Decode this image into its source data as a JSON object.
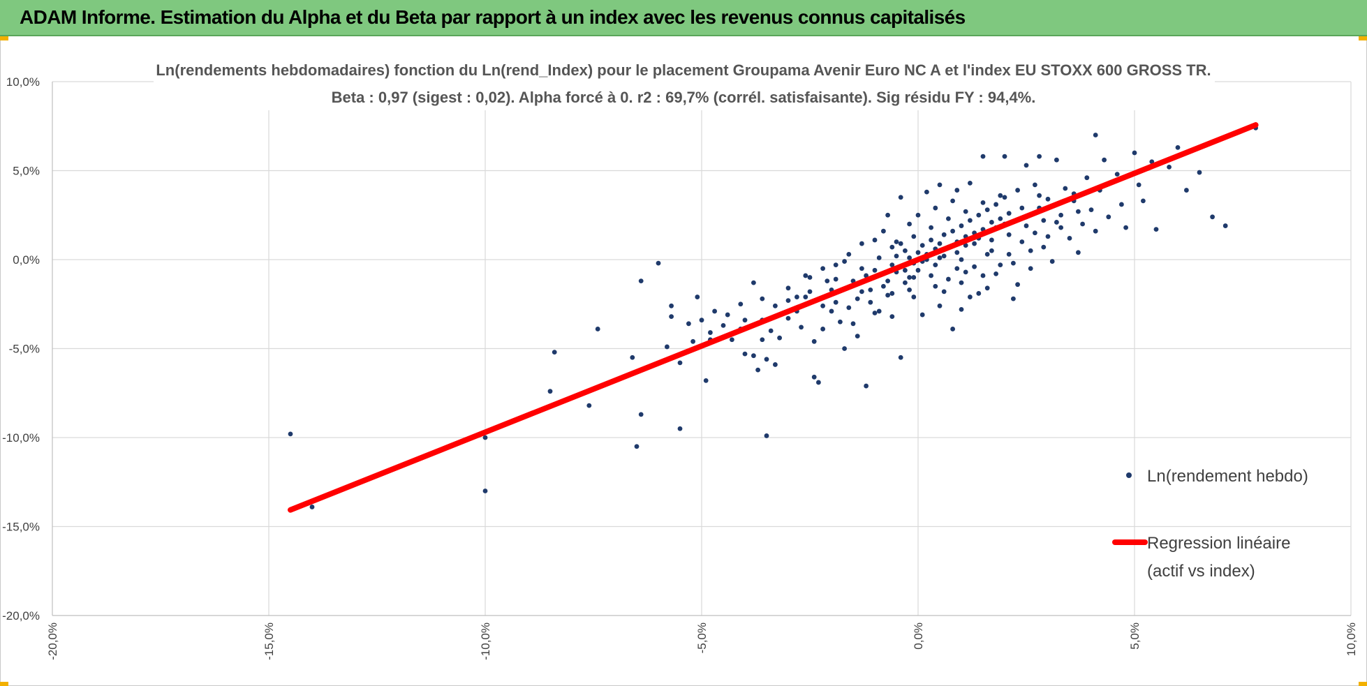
{
  "header": {
    "title": "ADAM Informe. Estimation du Alpha et du Beta par rapport à un index avec les revenus connus capitalisés"
  },
  "colors": {
    "banner": "#7fc87f",
    "points": "#1f3a6b",
    "regression": "#ff0000",
    "grid": "#d9d9d9"
  },
  "chart_data": {
    "type": "scatter",
    "title_lines": [
      "Ln(rendements hebdomadaires) fonction du Ln(rend_Index) pour le placement Groupama Avenir Euro NC A et l'index EU STOXX 600 GROSS TR.",
      "Beta : 0,97 (sigest : 0,02).  Alpha forcé à 0. r2 : 69,7% (corrél. satisfaisante). Sig résidu FY : 94,4%."
    ],
    "xlabel": "",
    "ylabel": "",
    "xlim": [
      -20,
      10
    ],
    "ylim": [
      -20,
      10
    ],
    "x_ticks": [
      -20,
      -15,
      -10,
      -5,
      0,
      5,
      10
    ],
    "y_ticks": [
      -20,
      -15,
      -10,
      -5,
      0,
      5,
      10
    ],
    "x_tick_labels": [
      "-20,0%",
      "-15,0%",
      "-10,0%",
      "-5,0%",
      "0,0%",
      "5,0%",
      "10,0%"
    ],
    "y_tick_labels": [
      "-20,0%",
      "-15,0%",
      "-10,0%",
      "-5,0%",
      "0,0%",
      "5,0%",
      "10,0%"
    ],
    "grid": true,
    "legend_position": "right",
    "series": [
      {
        "name": "Ln(rendement hebdo)",
        "kind": "scatter",
        "points": [
          [
            -14.5,
            -9.8
          ],
          [
            -14.0,
            -13.9
          ],
          [
            -10.0,
            -10.0
          ],
          [
            -10.0,
            -13.0
          ],
          [
            -8.4,
            -5.2
          ],
          [
            -8.5,
            -7.4
          ],
          [
            -7.6,
            -8.2
          ],
          [
            -7.4,
            -3.9
          ],
          [
            -6.6,
            -5.5
          ],
          [
            -6.5,
            -10.5
          ],
          [
            -6.4,
            -8.7
          ],
          [
            -6.4,
            -1.2
          ],
          [
            -6.0,
            -0.2
          ],
          [
            -5.7,
            -2.6
          ],
          [
            -5.7,
            -3.2
          ],
          [
            -5.5,
            -5.8
          ],
          [
            -5.5,
            -9.5
          ],
          [
            -5.3,
            -3.6
          ],
          [
            -5.0,
            -3.4
          ],
          [
            -5.1,
            -2.1
          ],
          [
            -4.9,
            -6.8
          ],
          [
            -4.8,
            -4.5
          ],
          [
            -4.7,
            -2.9
          ],
          [
            -4.5,
            -3.7
          ],
          [
            -4.3,
            -4.5
          ],
          [
            -4.1,
            -3.9
          ],
          [
            -4.0,
            -5.3
          ],
          [
            -4.0,
            -3.4
          ],
          [
            -3.8,
            -1.3
          ],
          [
            -3.8,
            -5.4
          ],
          [
            -3.7,
            -6.2
          ],
          [
            -3.6,
            -4.5
          ],
          [
            -3.6,
            -3.4
          ],
          [
            -3.5,
            -5.6
          ],
          [
            -3.4,
            -4.0
          ],
          [
            -3.5,
            -9.9
          ],
          [
            -3.3,
            -5.9
          ],
          [
            -3.2,
            -4.4
          ],
          [
            -3.0,
            -2.3
          ],
          [
            -3.0,
            -3.3
          ],
          [
            -2.8,
            -2.1
          ],
          [
            -2.7,
            -3.8
          ],
          [
            -2.6,
            -2.1
          ],
          [
            -2.5,
            -1.0
          ],
          [
            -2.4,
            -4.6
          ],
          [
            -2.4,
            -6.6
          ],
          [
            -2.3,
            -6.9
          ],
          [
            -2.2,
            -3.9
          ],
          [
            -2.0,
            -1.7
          ],
          [
            -2.0,
            -2.9
          ],
          [
            -1.9,
            -2.4
          ],
          [
            -1.8,
            -3.5
          ],
          [
            -1.7,
            -5.0
          ],
          [
            -1.5,
            -3.6
          ],
          [
            -1.4,
            -4.3
          ],
          [
            -1.3,
            -1.8
          ],
          [
            -1.2,
            -7.1
          ],
          [
            -1.1,
            -2.4
          ],
          [
            -1.0,
            -3.0
          ],
          [
            -0.9,
            -2.9
          ],
          [
            -0.8,
            -1.5
          ],
          [
            -0.7,
            -2.0
          ],
          [
            -0.6,
            -3.2
          ],
          [
            -0.5,
            -0.7
          ],
          [
            -0.4,
            -5.5
          ],
          [
            -0.3,
            -1.3
          ],
          [
            -0.2,
            -1.0
          ],
          [
            -0.1,
            -2.1
          ],
          [
            0.0,
            -0.6
          ],
          [
            0.1,
            -3.1
          ],
          [
            0.2,
            0.0
          ],
          [
            0.3,
            -0.9
          ],
          [
            0.4,
            -1.5
          ],
          [
            0.5,
            -2.6
          ],
          [
            0.6,
            0.2
          ],
          [
            0.7,
            -1.1
          ],
          [
            0.8,
            -3.9
          ],
          [
            0.9,
            -0.5
          ],
          [
            1.0,
            -1.3
          ],
          [
            1.1,
            0.8
          ],
          [
            1.2,
            -2.1
          ],
          [
            1.3,
            -0.4
          ],
          [
            1.4,
            1.2
          ],
          [
            1.5,
            -0.9
          ],
          [
            1.6,
            -1.6
          ],
          [
            1.7,
            0.5
          ],
          [
            1.8,
            1.8
          ],
          [
            1.9,
            -0.3
          ],
          [
            2.0,
            2.0
          ],
          [
            2.1,
            0.3
          ],
          [
            2.2,
            -2.2
          ],
          [
            2.3,
            -1.4
          ],
          [
            2.4,
            1.0
          ],
          [
            2.5,
            2.4
          ],
          [
            2.6,
            -0.5
          ],
          [
            2.7,
            1.5
          ],
          [
            2.8,
            2.9
          ],
          [
            2.9,
            0.7
          ],
          [
            3.0,
            3.4
          ],
          [
            3.1,
            -0.1
          ],
          [
            -1.5,
            -1.2
          ],
          [
            -1.2,
            -0.9
          ],
          [
            -1.0,
            -0.6
          ],
          [
            -0.8,
            -0.8
          ],
          [
            -0.6,
            -0.3
          ],
          [
            -0.5,
            0.2
          ],
          [
            -0.4,
            -0.4
          ],
          [
            -0.3,
            0.5
          ],
          [
            -0.2,
            0.1
          ],
          [
            -0.1,
            -0.2
          ],
          [
            0.0,
            0.4
          ],
          [
            0.1,
            0.8
          ],
          [
            0.2,
            0.3
          ],
          [
            0.3,
            1.1
          ],
          [
            0.4,
            0.6
          ],
          [
            0.5,
            0.9
          ],
          [
            0.6,
            1.4
          ],
          [
            0.7,
            0.7
          ],
          [
            0.8,
            1.6
          ],
          [
            0.9,
            1.0
          ],
          [
            1.0,
            1.9
          ],
          [
            1.1,
            1.3
          ],
          [
            1.2,
            2.2
          ],
          [
            1.3,
            1.5
          ],
          [
            1.4,
            2.5
          ],
          [
            1.5,
            1.7
          ],
          [
            1.6,
            2.8
          ],
          [
            1.7,
            2.1
          ],
          [
            1.8,
            3.1
          ],
          [
            1.9,
            2.3
          ],
          [
            2.0,
            3.5
          ],
          [
            2.1,
            2.6
          ],
          [
            -2.5,
            -1.8
          ],
          [
            -2.2,
            -2.6
          ],
          [
            -1.9,
            -1.1
          ],
          [
            -1.6,
            -2.7
          ],
          [
            -1.3,
            -0.5
          ],
          [
            -1.1,
            -1.7
          ],
          [
            -0.9,
            0.1
          ],
          [
            -0.7,
            -1.2
          ],
          [
            -0.5,
            1.0
          ],
          [
            -0.3,
            -0.6
          ],
          [
            -0.1,
            1.3
          ],
          [
            0.1,
            -0.1
          ],
          [
            0.3,
            1.8
          ],
          [
            0.5,
            0.1
          ],
          [
            0.7,
            2.3
          ],
          [
            0.9,
            0.4
          ],
          [
            1.1,
            2.7
          ],
          [
            1.3,
            0.9
          ],
          [
            1.5,
            3.2
          ],
          [
            1.7,
            1.1
          ],
          [
            1.9,
            3.6
          ],
          [
            2.1,
            1.4
          ],
          [
            2.3,
            3.9
          ],
          [
            2.5,
            1.9
          ],
          [
            2.7,
            4.2
          ],
          [
            2.9,
            2.2
          ],
          [
            3.1,
            3.0
          ],
          [
            3.3,
            2.5
          ],
          [
            3.4,
            4.0
          ],
          [
            3.5,
            1.2
          ],
          [
            3.6,
            3.3
          ],
          [
            3.7,
            0.4
          ],
          [
            3.8,
            2.0
          ],
          [
            3.9,
            4.6
          ],
          [
            4.0,
            2.8
          ],
          [
            4.1,
            1.6
          ],
          [
            4.2,
            3.9
          ],
          [
            4.3,
            5.6
          ],
          [
            4.4,
            2.4
          ],
          [
            4.6,
            4.8
          ],
          [
            4.7,
            3.1
          ],
          [
            4.8,
            1.8
          ],
          [
            5.0,
            6.0
          ],
          [
            5.1,
            4.2
          ],
          [
            5.2,
            3.3
          ],
          [
            5.4,
            5.5
          ],
          [
            5.5,
            1.7
          ],
          [
            5.8,
            5.2
          ],
          [
            6.0,
            6.3
          ],
          [
            6.2,
            3.9
          ],
          [
            6.5,
            4.9
          ],
          [
            6.8,
            2.4
          ],
          [
            7.0,
            6.8
          ],
          [
            7.1,
            1.9
          ],
          [
            7.8,
            7.4
          ],
          [
            4.1,
            7.0
          ],
          [
            3.2,
            5.6
          ],
          [
            2.8,
            5.8
          ],
          [
            2.5,
            5.3
          ],
          [
            2.0,
            5.8
          ],
          [
            1.5,
            5.8
          ],
          [
            1.2,
            4.3
          ],
          [
            0.9,
            3.9
          ],
          [
            0.5,
            4.2
          ],
          [
            0.2,
            3.8
          ],
          [
            -0.4,
            3.5
          ],
          [
            -0.7,
            2.5
          ],
          [
            -1.0,
            1.1
          ],
          [
            -1.3,
            0.9
          ],
          [
            -1.6,
            0.3
          ],
          [
            -1.9,
            -0.3
          ],
          [
            -2.2,
            -0.5
          ],
          [
            -2.6,
            -0.9
          ],
          [
            -3.0,
            -1.6
          ],
          [
            -3.3,
            -2.6
          ],
          [
            -3.6,
            -2.2
          ],
          [
            -4.1,
            -2.5
          ],
          [
            -4.4,
            -3.1
          ],
          [
            -4.8,
            -4.1
          ],
          [
            -5.2,
            -4.6
          ],
          [
            -5.8,
            -4.9
          ],
          [
            0.6,
            -1.8
          ],
          [
            1.0,
            -2.8
          ],
          [
            1.4,
            -1.9
          ],
          [
            1.8,
            -0.8
          ],
          [
            2.2,
            -0.2
          ],
          [
            2.6,
            0.5
          ],
          [
            3.0,
            1.3
          ],
          [
            3.3,
            1.8
          ],
          [
            3.7,
            2.7
          ],
          [
            -0.2,
            -1.7
          ],
          [
            -0.6,
            -1.9
          ],
          [
            -1.4,
            -2.2
          ],
          [
            -1.7,
            -0.1
          ],
          [
            -2.1,
            -1.2
          ],
          [
            -2.8,
            -2.9
          ],
          [
            -0.8,
            1.6
          ],
          [
            -0.6,
            0.7
          ],
          [
            -0.2,
            2.0
          ],
          [
            0.0,
            2.5
          ],
          [
            0.4,
            2.9
          ],
          [
            0.8,
            3.3
          ],
          [
            1.0,
            0.0
          ],
          [
            1.6,
            0.3
          ],
          [
            2.4,
            2.9
          ],
          [
            2.8,
            3.6
          ],
          [
            3.2,
            2.1
          ],
          [
            3.6,
            3.7
          ],
          [
            1.1,
            -0.7
          ],
          [
            0.4,
            -0.3
          ],
          [
            -0.1,
            -1.0
          ],
          [
            -0.4,
            0.9
          ]
        ]
      },
      {
        "name": "Regression linéaire",
        "name_line2": "(actif vs index)",
        "kind": "line",
        "slope": 0.97,
        "intercept": 0,
        "x_range": [
          -14.5,
          7.8
        ]
      }
    ]
  }
}
